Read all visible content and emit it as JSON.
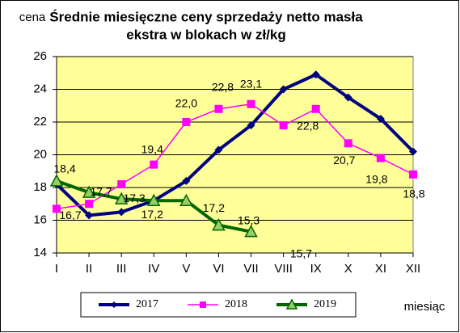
{
  "chart_data": {
    "type": "line",
    "title": [
      "Średnie miesięczne ceny sprzedaży netto masła",
      "ekstra w blokach w zł/kg"
    ],
    "y_label": "cena",
    "x_label": "miesiąc",
    "categories": [
      "I",
      "II",
      "III",
      "IV",
      "V",
      "VI",
      "VII",
      "VIII",
      "IX",
      "X",
      "XI",
      "XII"
    ],
    "ylim": [
      14,
      26
    ],
    "yticks": [
      14,
      16,
      18,
      20,
      22,
      24,
      26
    ],
    "grid": true,
    "series": [
      {
        "name": "2017",
        "color": "#000080",
        "marker": "diamond",
        "values": [
          18.2,
          16.3,
          16.5,
          17.2,
          18.4,
          20.3,
          21.8,
          24.0,
          24.9,
          23.5,
          22.2,
          20.2
        ]
      },
      {
        "name": "2018",
        "color": "#ff00ff",
        "marker": "square",
        "values": [
          16.7,
          17.0,
          18.2,
          19.4,
          22.0,
          22.8,
          23.1,
          21.8,
          22.8,
          20.7,
          19.8,
          18.8
        ],
        "value_labels": [
          "16,7",
          null,
          null,
          "19,4",
          "22,0",
          "22,8",
          "23,1",
          null,
          "22,8",
          "20,7",
          "19,8",
          "18,8"
        ]
      },
      {
        "name": "2019",
        "color": "#006600",
        "marker": "triangle",
        "values": [
          18.4,
          17.7,
          17.3,
          17.2,
          17.2,
          15.7,
          15.3,
          null,
          null,
          null,
          null,
          null
        ],
        "value_labels": [
          "18,4",
          "17,7",
          "17,3",
          "17,2",
          "17,2",
          "15,7",
          "15,3",
          null,
          null,
          null,
          null,
          null
        ]
      }
    ]
  }
}
